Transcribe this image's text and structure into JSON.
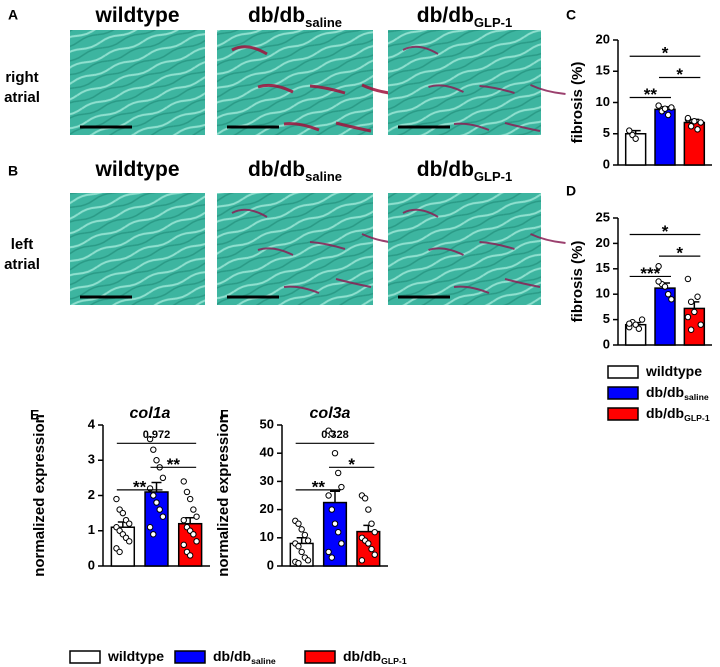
{
  "panel_labels": [
    "A",
    "B",
    "C",
    "D",
    "E",
    "F"
  ],
  "groups": [
    {
      "name": "wildtype",
      "color": "#ffffff"
    },
    {
      "name": "db/db",
      "sub": "saline",
      "color": "#0000ff"
    },
    {
      "name": "db/db",
      "sub": "GLP-1",
      "color": "#ff0000"
    }
  ],
  "rows": [
    [
      "right",
      "atrial"
    ],
    [
      "left",
      "atrial"
    ]
  ],
  "chart_data": [
    {
      "type": "bar",
      "ylabel": "fibrosis (%)",
      "categories": [
        null,
        null,
        null
      ],
      "values": [
        5,
        8.9,
        6.8
      ],
      "errors": [
        0.5,
        0.4,
        0.5
      ],
      "points": [
        [
          5.5,
          4.8,
          4.2
        ],
        [
          9.5,
          8.6,
          9.0,
          8.0,
          9.2
        ],
        [
          7.3,
          6.2,
          7.0,
          5.7,
          6.8,
          7.5
        ]
      ],
      "ylim": [
        0,
        20
      ],
      "yticks": [
        0,
        5,
        10,
        15,
        20
      ],
      "brackets": [
        {
          "from": 0,
          "to": 1,
          "label": "**"
        },
        {
          "from": 1,
          "to": 2,
          "label": "*"
        },
        {
          "from": 0,
          "to": 2,
          "label": "*"
        }
      ]
    },
    {
      "type": "bar",
      "ylabel": "fibrosis (%)",
      "categories": [
        null,
        null,
        null
      ],
      "values": [
        4,
        11.2,
        7.2
      ],
      "errors": [
        0.4,
        1.0,
        1.3
      ],
      "points": [
        [
          3.5,
          4.5,
          4.0,
          3.2,
          5.0,
          4.2
        ],
        [
          15.5,
          12.0,
          11.5,
          10.0,
          9.0,
          12.5
        ],
        [
          13,
          8.5,
          6.5,
          9.5,
          4.0,
          5.5,
          3.0
        ]
      ],
      "ylim": [
        0,
        25
      ],
      "yticks": [
        0,
        5,
        10,
        15,
        20,
        25
      ],
      "brackets": [
        {
          "from": 0,
          "to": 1,
          "label": "***"
        },
        {
          "from": 1,
          "to": 2,
          "label": "*"
        },
        {
          "from": 0,
          "to": 2,
          "label": "*"
        }
      ]
    },
    {
      "type": "bar",
      "title": "col1a",
      "ylabel": "normalized expression",
      "categories": [
        null,
        null,
        null
      ],
      "values": [
        1.1,
        2.1,
        1.2
      ],
      "errors": [
        0.15,
        0.27,
        0.17
      ],
      "points": [
        [
          1.9,
          1.6,
          1.5,
          1.3,
          1.2,
          1.1,
          1.0,
          0.9,
          0.8,
          0.7,
          0.5,
          0.4
        ],
        [
          3.6,
          3.3,
          3.0,
          2.8,
          2.5,
          2.2,
          2.0,
          1.8,
          1.6,
          1.4,
          1.1,
          0.9
        ],
        [
          2.4,
          2.1,
          1.9,
          1.6,
          1.4,
          1.3,
          1.1,
          1.0,
          0.9,
          0.7,
          0.6,
          0.4,
          0.3
        ]
      ],
      "ylim": [
        0,
        4
      ],
      "yticks": [
        0,
        1,
        2,
        3,
        4
      ],
      "brackets": [
        {
          "from": 0,
          "to": 1,
          "label": "**"
        },
        {
          "from": 1,
          "to": 2,
          "label": "**"
        },
        {
          "from": 0,
          "to": 2,
          "label": "0.972"
        }
      ]
    },
    {
      "type": "bar",
      "title": "col3a",
      "ylabel": "normalized expression",
      "categories": [
        null,
        null,
        null
      ],
      "values": [
        8,
        22.5,
        12.2
      ],
      "errors": [
        2,
        4,
        2.2
      ],
      "points": [
        [
          16,
          15,
          13,
          11,
          9,
          8,
          7,
          5,
          3,
          2,
          1.5,
          1
        ],
        [
          48,
          47,
          40,
          33,
          28,
          25,
          20,
          15,
          12,
          8,
          5,
          3
        ],
        [
          25,
          24,
          20,
          15,
          12,
          10,
          9,
          8,
          6,
          4,
          2
        ]
      ],
      "ylim": [
        0,
        50
      ],
      "yticks": [
        0,
        10,
        20,
        30,
        40,
        50
      ],
      "brackets": [
        {
          "from": 0,
          "to": 1,
          "label": "**"
        },
        {
          "from": 1,
          "to": 2,
          "label": "*"
        },
        {
          "from": 0,
          "to": 2,
          "label": "0.328"
        }
      ]
    }
  ]
}
